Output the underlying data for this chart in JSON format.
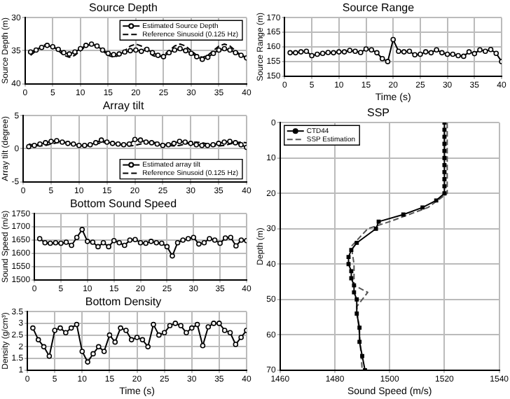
{
  "chart_data": [
    {
      "type": "line",
      "title": "Source Depth",
      "ylabel": "Source Depth (m)",
      "x": [
        1,
        2,
        3,
        4,
        5,
        6,
        7,
        8,
        9,
        10,
        11,
        12,
        13,
        14,
        15,
        16,
        17,
        18,
        19,
        20,
        21,
        22,
        23,
        24,
        25,
        26,
        27,
        28,
        29,
        30,
        31,
        32,
        33,
        34,
        35,
        36,
        37,
        38,
        39,
        40
      ],
      "xlim": [
        0,
        40
      ],
      "xticks": [
        0,
        5,
        10,
        15,
        20,
        25,
        30,
        35,
        40
      ],
      "ylim": [
        40,
        30
      ],
      "yticks": [
        30,
        35,
        40
      ],
      "grid": true,
      "legend": "top right",
      "series": [
        {
          "name": "Estimated Source Depth",
          "color": "#000000",
          "marker": "circle",
          "line_style": "solid",
          "values": [
            35.2,
            34.9,
            34.5,
            34.2,
            34.4,
            34.8,
            35.3,
            35.5,
            35.2,
            34.7,
            34.2,
            34.0,
            34.3,
            34.9,
            35.4,
            35.6,
            35.5,
            35.2,
            35.0,
            34.9,
            35.1,
            34.8,
            35.3,
            35.7,
            35.9,
            35.3,
            34.9,
            34.7,
            35.0,
            35.4,
            35.9,
            36.3,
            36.0,
            35.4,
            34.9,
            34.7,
            34.9,
            35.3,
            35.7,
            36.1
          ]
        },
        {
          "name": "Reference Sinusoid (0.125 Hz)",
          "color": "#000000",
          "marker": "none",
          "line_style": "dashed",
          "values": [
            35.7,
            35,
            34.3,
            34,
            34.3,
            35,
            35.7,
            36,
            35.7,
            35,
            34.3,
            34,
            34.3,
            35,
            35.7,
            36,
            35.7,
            35,
            34.3,
            34,
            34.3,
            35,
            35.7,
            36,
            35.7,
            35,
            34.3,
            34,
            34.3,
            35,
            35.7,
            36,
            35.7,
            35,
            34.3,
            34,
            34.3,
            35,
            35.7,
            36
          ]
        }
      ]
    },
    {
      "type": "line",
      "title": "Array tilt",
      "ylabel": "Array tilt (degree)",
      "x": [
        1,
        2,
        3,
        4,
        5,
        6,
        7,
        8,
        9,
        10,
        11,
        12,
        13,
        14,
        15,
        16,
        17,
        18,
        19,
        20,
        21,
        22,
        23,
        24,
        25,
        26,
        27,
        28,
        29,
        30,
        31,
        32,
        33,
        34,
        35,
        36,
        37,
        38,
        39,
        40
      ],
      "xlim": [
        0,
        40
      ],
      "xticks": [
        0,
        5,
        10,
        15,
        20,
        25,
        30,
        35,
        40
      ],
      "ylim": [
        -5,
        5
      ],
      "yticks": [
        -5,
        0,
        5
      ],
      "grid": true,
      "legend": "bottom right",
      "series": [
        {
          "name": "Estimated array tilt",
          "color": "#000000",
          "marker": "circle",
          "line_style": "solid",
          "values": [
            0.3,
            0.5,
            0.7,
            0.9,
            1.1,
            1.2,
            1.0,
            0.8,
            0.7,
            0.5,
            0.5,
            0.6,
            0.9,
            1.3,
            1.0,
            0.8,
            0.7,
            0.6,
            0.7,
            1.4,
            1.3,
            1.0,
            0.9,
            0.7,
            0.5,
            0.6,
            0.8,
            1.1,
            1.0,
            0.8,
            0.6,
            0.5,
            0.5,
            0.6,
            0.8,
            1.0,
            1.1,
            0.9,
            0.6,
            0.2
          ]
        },
        {
          "name": "Reference Sinusoid (0.125 Hz)",
          "color": "#000000",
          "marker": "none",
          "line_style": "dashed",
          "values": [
            0.7,
            0.5,
            0.4,
            0.5,
            0.7,
            0.9,
            1.0,
            0.9,
            0.7,
            0.5,
            0.4,
            0.5,
            0.7,
            0.9,
            1.0,
            0.9,
            0.7,
            0.5,
            0.4,
            0.5,
            0.7,
            0.9,
            1.0,
            0.9,
            0.7,
            0.5,
            0.4,
            0.5,
            0.7,
            0.9,
            1.0,
            0.9,
            0.7,
            0.5,
            0.4,
            0.5,
            0.7,
            0.9,
            1.0,
            0.9
          ]
        }
      ]
    },
    {
      "type": "line",
      "title": "Bottom Sound Speed",
      "ylabel": "Sound Speed (m/s)",
      "x": [
        1,
        2,
        3,
        4,
        5,
        6,
        7,
        8,
        9,
        10,
        11,
        12,
        13,
        14,
        15,
        16,
        17,
        18,
        19,
        20,
        21,
        22,
        23,
        24,
        25,
        26,
        27,
        28,
        29,
        30,
        31,
        32,
        33,
        34,
        35,
        36,
        37,
        38,
        39,
        40
      ],
      "xlim": [
        0,
        40
      ],
      "xticks": [
        0,
        5,
        10,
        15,
        20,
        25,
        30,
        35,
        40
      ],
      "ylim": [
        1500,
        1750
      ],
      "yticks": [
        1500,
        1550,
        1600,
        1650,
        1700,
        1750
      ],
      "grid": true,
      "series": [
        {
          "color": "#000000",
          "marker": "circle",
          "line_style": "solid",
          "values": [
            1655,
            1640,
            1638,
            1640,
            1638,
            1642,
            1630,
            1660,
            1690,
            1645,
            1642,
            1625,
            1640,
            1625,
            1648,
            1640,
            1630,
            1650,
            1652,
            1640,
            1638,
            1645,
            1640,
            1638,
            1625,
            1590,
            1640,
            1650,
            1655,
            1660,
            1635,
            1640,
            1655,
            1650,
            1638,
            1658,
            1660,
            1628,
            1650,
            1648
          ]
        }
      ]
    },
    {
      "type": "line",
      "title": "Bottom Density",
      "xlabel": "Time (s)",
      "ylabel": "Density (g/cm³)",
      "x": [
        1,
        2,
        3,
        4,
        5,
        6,
        7,
        8,
        9,
        10,
        11,
        12,
        13,
        14,
        15,
        16,
        17,
        18,
        19,
        20,
        21,
        22,
        23,
        24,
        25,
        26,
        27,
        28,
        29,
        30,
        31,
        32,
        33,
        34,
        35,
        36,
        37,
        38,
        39,
        40
      ],
      "xlim": [
        0,
        40
      ],
      "xticks": [
        0,
        5,
        10,
        15,
        20,
        25,
        30,
        35,
        40
      ],
      "ylim": [
        1,
        3.5
      ],
      "yticks": [
        1,
        1.5,
        2,
        2.5,
        3,
        3.5
      ],
      "grid": true,
      "series": [
        {
          "color": "#000000",
          "marker": "circle",
          "line_style": "solid",
          "values": [
            2.8,
            2.3,
            2.0,
            1.6,
            2.7,
            2.8,
            2.6,
            2.8,
            2.95,
            1.8,
            1.35,
            1.7,
            2.0,
            1.8,
            2.5,
            2.2,
            2.8,
            2.7,
            2.3,
            2.4,
            2.3,
            2.0,
            2.95,
            2.5,
            2.6,
            2.9,
            3.0,
            2.9,
            2.6,
            2.8,
            2.95,
            2.05,
            2.85,
            3.0,
            3.0,
            2.7,
            2.6,
            2.1,
            2.4,
            2.7
          ]
        }
      ]
    },
    {
      "type": "line",
      "title": "Source Range",
      "xlabel": "Time (s)",
      "ylabel": "Source Range (m)",
      "x": [
        1,
        2,
        3,
        4,
        5,
        6,
        7,
        8,
        9,
        10,
        11,
        12,
        13,
        14,
        15,
        16,
        17,
        18,
        19,
        20,
        21,
        22,
        23,
        24,
        25,
        26,
        27,
        28,
        29,
        30,
        31,
        32,
        33,
        34,
        35,
        36,
        37,
        38,
        39,
        40
      ],
      "xlim": [
        0,
        40
      ],
      "xticks": [
        0,
        5,
        10,
        15,
        20,
        25,
        30,
        35,
        40
      ],
      "ylim": [
        150,
        170
      ],
      "yticks": [
        150,
        155,
        160,
        165,
        170
      ],
      "grid": true,
      "series": [
        {
          "color": "#000000",
          "marker": "circle",
          "line_style": "solid",
          "values": [
            158,
            158,
            158.3,
            158.5,
            157,
            157.5,
            157.8,
            158.1,
            158,
            158.3,
            158.3,
            158.8,
            158.5,
            158.1,
            159.3,
            159,
            158,
            156,
            155,
            162.5,
            158.5,
            158.3,
            158.5,
            157.3,
            157.5,
            158.3,
            158,
            159,
            158,
            157.5,
            157.5,
            157,
            156.8,
            158.3,
            157.7,
            159,
            158.5,
            159.1,
            157.8,
            155
          ]
        }
      ]
    },
    {
      "type": "line",
      "title": "SSP",
      "xlabel": "Sound Speed (m/s)",
      "ylabel": "Depth (m)",
      "xlim": [
        1460,
        1540
      ],
      "xticks": [
        1460,
        1480,
        1500,
        1520,
        1540
      ],
      "ylim": [
        70,
        0
      ],
      "yticks": [
        0,
        10,
        20,
        30,
        40,
        50,
        60,
        70
      ],
      "grid": true,
      "legend": "top left",
      "series": [
        {
          "name": "CTD44",
          "color": "#000000",
          "marker": "square",
          "line_style": "solid",
          "x": [
            1520,
            1520,
            1520,
            1520,
            1520,
            1520,
            1520,
            1520,
            1520,
            1520,
            1520,
            1517,
            1512,
            1505,
            1496,
            1495,
            1488,
            1486,
            1485,
            1485,
            1486,
            1486,
            1487,
            1487,
            1488,
            1488,
            1489,
            1489,
            1490,
            1491
          ],
          "values": [
            0,
            2,
            4,
            6,
            8,
            10,
            12,
            14,
            16,
            18,
            20,
            22,
            24,
            26,
            28,
            30,
            34,
            36,
            38,
            40,
            42,
            44,
            46,
            48,
            50,
            54,
            58,
            62,
            66,
            70
          ]
        },
        {
          "name": "SSP Estimation",
          "color": "#555555",
          "marker": "none",
          "line_style": "dashed",
          "x": [
            1521,
            1521,
            1521,
            1514,
            1500,
            1492,
            1486,
            1487,
            1487,
            1492,
            1488,
            1489,
            1490
          ],
          "values": [
            0,
            10,
            20,
            24,
            28,
            30,
            35,
            40,
            46,
            48,
            52,
            60,
            70
          ]
        }
      ]
    }
  ]
}
